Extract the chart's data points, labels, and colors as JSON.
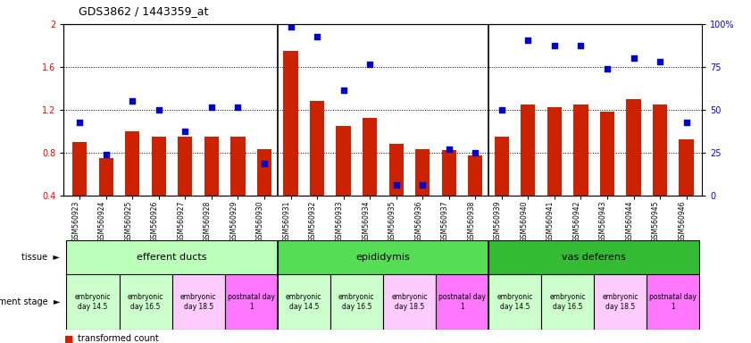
{
  "title": "GDS3862 / 1443359_at",
  "samples": [
    "GSM560923",
    "GSM560924",
    "GSM560925",
    "GSM560926",
    "GSM560927",
    "GSM560928",
    "GSM560929",
    "GSM560930",
    "GSM560931",
    "GSM560932",
    "GSM560933",
    "GSM560934",
    "GSM560935",
    "GSM560936",
    "GSM560937",
    "GSM560938",
    "GSM560939",
    "GSM560940",
    "GSM560941",
    "GSM560942",
    "GSM560943",
    "GSM560944",
    "GSM560945",
    "GSM560946"
  ],
  "transformed_count": [
    0.9,
    0.75,
    1.0,
    0.95,
    0.95,
    0.95,
    0.95,
    0.83,
    1.75,
    1.28,
    1.05,
    1.12,
    0.88,
    0.83,
    0.82,
    0.77,
    0.95,
    1.25,
    1.22,
    1.25,
    1.18,
    1.3,
    1.25,
    0.92
  ],
  "percentile_rank": [
    1.08,
    0.78,
    1.28,
    1.2,
    1.0,
    1.22,
    1.22,
    0.7,
    1.97,
    1.88,
    1.38,
    1.62,
    0.5,
    0.5,
    0.83,
    0.8,
    1.2,
    1.85,
    1.8,
    1.8,
    1.58,
    1.68,
    1.65,
    1.08
  ],
  "ylim_left": [
    0.4,
    2.0
  ],
  "ylim_right": [
    0,
    100
  ],
  "yticks_left": [
    0.4,
    0.8,
    1.2,
    1.6,
    2.0
  ],
  "ytick_labels_left": [
    "0.4",
    "0.8",
    "1.2",
    "1.6",
    "2"
  ],
  "yticks_right": [
    0,
    25,
    50,
    75,
    100
  ],
  "ytick_labels_right": [
    "0",
    "25",
    "50",
    "75",
    "100%"
  ],
  "bar_color": "#cc2200",
  "dot_color": "#0000cc",
  "bg_color": "#ffffff",
  "tissue_groups": [
    {
      "label": "efferent ducts",
      "start": 0,
      "end": 7,
      "color": "#bbffbb"
    },
    {
      "label": "epididymis",
      "start": 8,
      "end": 15,
      "color": "#55dd55"
    },
    {
      "label": "vas deferens",
      "start": 16,
      "end": 23,
      "color": "#33bb33"
    }
  ],
  "dev_stage_groups": [
    {
      "label": "embryonic\nday 14.5",
      "start": 0,
      "end": 1,
      "color": "#ccffcc"
    },
    {
      "label": "embryonic\nday 16.5",
      "start": 2,
      "end": 3,
      "color": "#ccffcc"
    },
    {
      "label": "embryonic\nday 18.5",
      "start": 4,
      "end": 5,
      "color": "#ffccff"
    },
    {
      "label": "postnatal day\n1",
      "start": 6,
      "end": 7,
      "color": "#ff77ff"
    },
    {
      "label": "embryonic\nday 14.5",
      "start": 8,
      "end": 9,
      "color": "#ccffcc"
    },
    {
      "label": "embryonic\nday 16.5",
      "start": 10,
      "end": 11,
      "color": "#ccffcc"
    },
    {
      "label": "embryonic\nday 18.5",
      "start": 12,
      "end": 13,
      "color": "#ffccff"
    },
    {
      "label": "postnatal day\n1",
      "start": 14,
      "end": 15,
      "color": "#ff77ff"
    },
    {
      "label": "embryonic\nday 14.5",
      "start": 16,
      "end": 17,
      "color": "#ccffcc"
    },
    {
      "label": "embryonic\nday 16.5",
      "start": 18,
      "end": 19,
      "color": "#ccffcc"
    },
    {
      "label": "embryonic\nday 18.5",
      "start": 20,
      "end": 21,
      "color": "#ffccff"
    },
    {
      "label": "postnatal day\n1",
      "start": 22,
      "end": 23,
      "color": "#ff77ff"
    }
  ]
}
